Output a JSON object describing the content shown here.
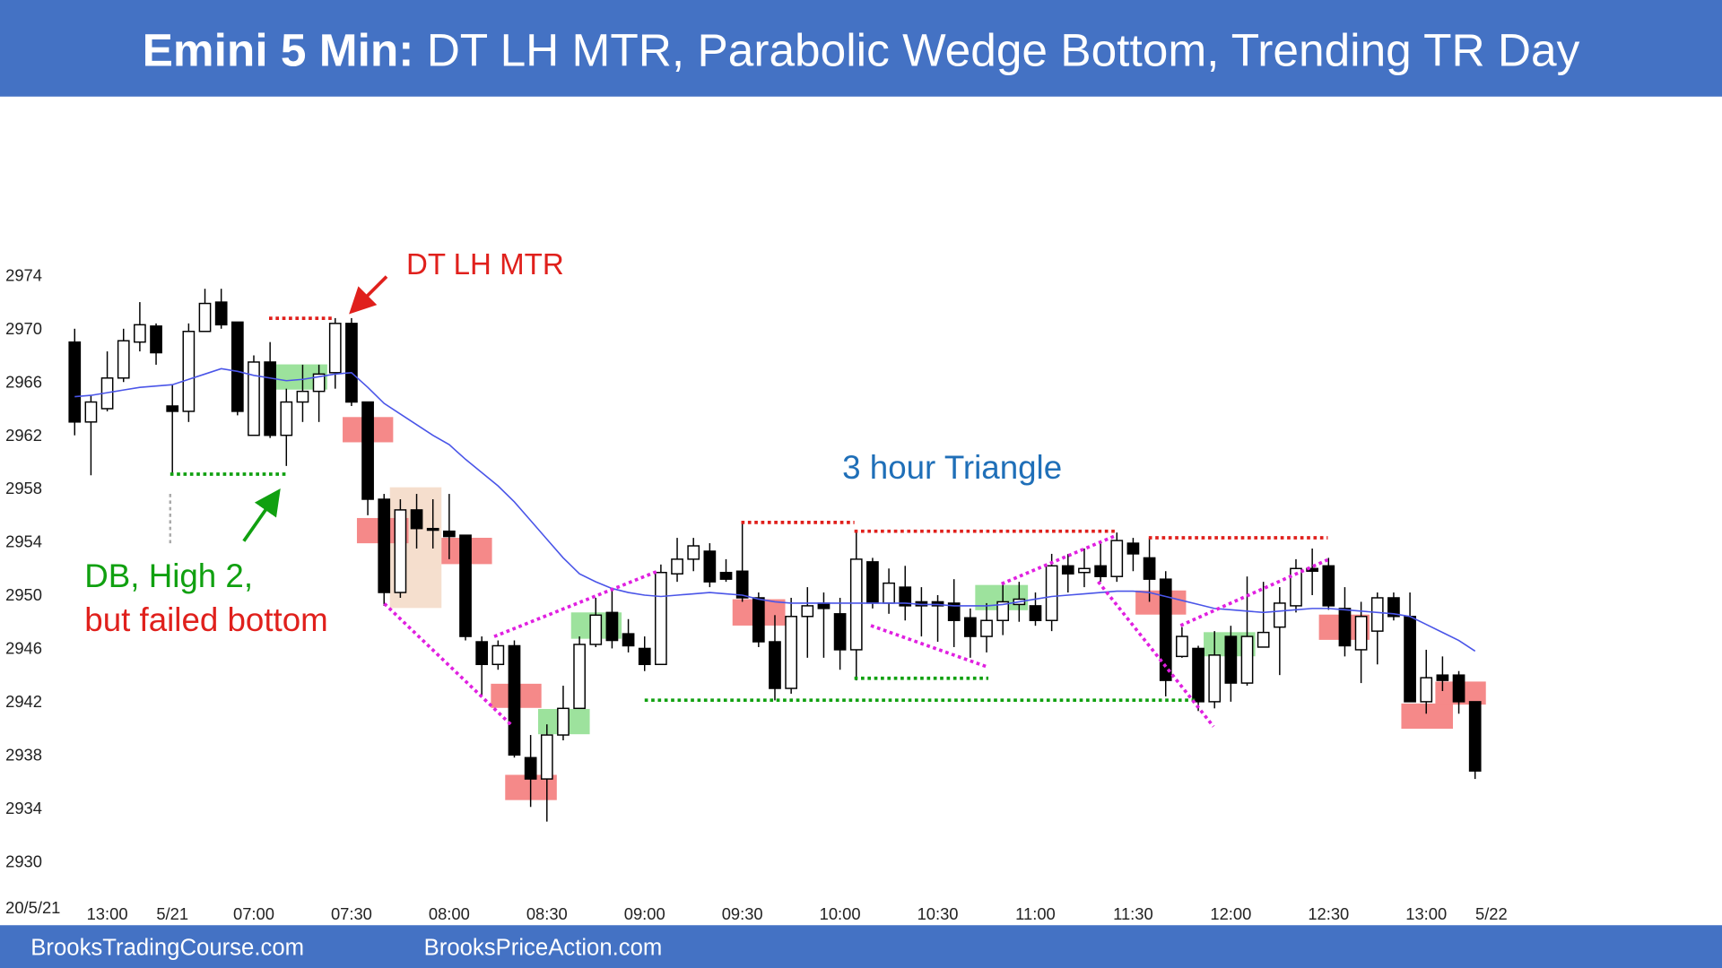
{
  "chart_data": {
    "type": "candlestick",
    "title_lead": "Emini 5 Min:",
    "title": "DT LH MTR, Parabolic Wedge Bottom, Trending TR Day",
    "date_label": "20/5/21",
    "annotations": [
      "DT LH MTR",
      "3 hour Triangle",
      "DB, High 2,",
      "but failed bottom"
    ],
    "footer": [
      "BrooksTradingCourse.com",
      "BrooksPriceAction.com"
    ],
    "categories": [
      null,
      null,
      "13:00",
      null,
      null,
      null,
      "5/21",
      null,
      null,
      null,
      null,
      "07:00",
      null,
      null,
      null,
      null,
      null,
      "07:30",
      null,
      null,
      null,
      null,
      null,
      "08:00",
      null,
      null,
      null,
      null,
      null,
      "08:30",
      null,
      null,
      null,
      null,
      null,
      "09:00",
      null,
      null,
      null,
      null,
      null,
      "09:30",
      null,
      null,
      null,
      null,
      null,
      "10:00",
      null,
      null,
      null,
      null,
      null,
      "10:30",
      null,
      null,
      null,
      null,
      null,
      "11:00",
      null,
      null,
      null,
      null,
      null,
      "11:30",
      null,
      null,
      null,
      null,
      null,
      "12:00",
      null,
      null,
      null,
      null,
      null,
      "12:30",
      null,
      null,
      null,
      null,
      null,
      "13:00",
      null,
      null,
      null,
      "5/22"
    ],
    "open": [
      2969,
      2963,
      2964,
      2966.3,
      2969,
      2970.2,
      2964.2,
      2963.8,
      2969.8,
      2972,
      2970.5,
      2962,
      2967.5,
      2962,
      2964.5,
      2965.3,
      2966.7,
      2970.4,
      2964.5,
      2957.2,
      2950.2,
      2956.4,
      2955,
      2954.8,
      2954.5,
      2946.5,
      2944.8,
      2946.2,
      2937.8,
      2936.2,
      2939.5,
      2941.5,
      2946.3,
      2948.7,
      2947.1,
      2946,
      2944.8,
      2951.6,
      2952.7,
      2953.3,
      2951.7,
      2951.8,
      2949.8,
      2946.5,
      2943,
      2948.4,
      2949.4,
      2948.6,
      2945.9,
      2952.5,
      2949.4,
      2950.6,
      2949.5,
      2949.5,
      2949.4,
      2948.3,
      2946.9,
      2948.1,
      2949.3,
      2949.2,
      2948.1,
      2952.2,
      2951.7,
      2952.2,
      2951.4,
      2953.9,
      2952.8,
      2951.2,
      2945.4,
      2946,
      2942,
      2946.9,
      2943.4,
      2946.1,
      2947.6,
      2949.2,
      2952,
      2952.2,
      2949,
      2945.9,
      2947.3,
      2949.8,
      2948.4,
      2942,
      2944,
      2944,
      2942,
      null
    ],
    "high": [
      2970,
      2965,
      2968.3,
      2970,
      2972,
      2970.4,
      2965.8,
      2970.4,
      2973,
      2973,
      2970.5,
      2968,
      2969,
      2965.5,
      2967.3,
      2967.3,
      2970.8,
      2970.8,
      2964.5,
      2957.6,
      2957.2,
      2957.6,
      2957.2,
      2957.6,
      2954.5,
      2946.9,
      2946.6,
      2946.6,
      2939.5,
      2940.3,
      2943.2,
      2946.9,
      2949.8,
      2950.5,
      2948.2,
      2946.9,
      2952.3,
      2954.3,
      2954.3,
      2953.9,
      2952.7,
      2955.5,
      2950.2,
      2948.5,
      2949.8,
      2950.6,
      2950.2,
      2949.8,
      2954.7,
      2952.8,
      2952,
      2952.2,
      2950.6,
      2950,
      2951.2,
      2949,
      2949.4,
      2951,
      2951,
      2950.2,
      2953.1,
      2953.1,
      2953.5,
      2953.9,
      2954.7,
      2954.3,
      2954.3,
      2951.8,
      2947.6,
      2946.2,
      2947.3,
      2947.7,
      2951.4,
      2951,
      2950.6,
      2952.7,
      2953.5,
      2952.8,
      2950.6,
      2949.5,
      2950.2,
      2950.2,
      2950.2,
      2945.9,
      2945.4,
      2944.3,
      2942,
      null
    ],
    "low": [
      2962,
      2959,
      2963.8,
      2966,
      2968.3,
      2967.3,
      2959,
      2963,
      2969.8,
      2970,
      2963.5,
      2962,
      2961.8,
      2959.7,
      2963,
      2963,
      2965.5,
      2964.2,
      2956,
      2949.2,
      2949.8,
      2953.5,
      2953.5,
      2952.7,
      2946.6,
      2942.4,
      2944.4,
      2937.8,
      2934.1,
      2933,
      2939.1,
      2941.5,
      2946.1,
      2946,
      2945.7,
      2944.3,
      2944.8,
      2951,
      2951.8,
      2950.6,
      2951,
      2949.5,
      2946.1,
      2942.1,
      2942.6,
      2945.3,
      2945.3,
      2944.4,
      2943.6,
      2949,
      2948.6,
      2948.1,
      2946.9,
      2946.5,
      2946.1,
      2945.3,
      2945.7,
      2947,
      2948,
      2947.7,
      2947.3,
      2950.2,
      2950.6,
      2951,
      2951,
      2951.8,
      2949.5,
      2942.4,
      2945.3,
      2941.3,
      2941.5,
      2942,
      2943.2,
      2946.1,
      2944,
      2948.7,
      2950,
      2948.9,
      2945.4,
      2943.4,
      2944.8,
      2948.1,
      2942,
      2941.1,
      2942.8,
      2941.1,
      2936.2,
      null
    ],
    "close": [
      2963,
      2964.5,
      2966.3,
      2969.1,
      2970.3,
      2968.2,
      2963.8,
      2969.8,
      2971.9,
      2970.3,
      2963.8,
      2967.5,
      2962,
      2964.5,
      2965.3,
      2966.6,
      2970.4,
      2964.5,
      2957.2,
      2950.2,
      2956.4,
      2955,
      2954.9,
      2954.4,
      2946.9,
      2944.8,
      2946.2,
      2938,
      2936.2,
      2939.5,
      2941.5,
      2946.3,
      2948.5,
      2946.6,
      2946.2,
      2944.8,
      2951.7,
      2952.7,
      2953.7,
      2951,
      2951.2,
      2949.8,
      2946.5,
      2943,
      2948.4,
      2949.2,
      2949,
      2945.9,
      2952.7,
      2949.4,
      2950.9,
      2949.2,
      2949.2,
      2949.2,
      2948.1,
      2946.9,
      2948.1,
      2949.5,
      2949.7,
      2948.1,
      2952.2,
      2951.6,
      2952,
      2951.4,
      2954.1,
      2953.1,
      2951.2,
      2943.6,
      2946.9,
      2942,
      2945.5,
      2943.4,
      2946.9,
      2947.2,
      2949.4,
      2952,
      2951.8,
      2949.2,
      2946.2,
      2948.4,
      2949.8,
      2948.4,
      2942,
      2943.8,
      2943.6,
      2942,
      2936.8,
      null
    ],
    "ema": [
      2964.9,
      2965,
      2965.2,
      2965.4,
      2965.6,
      2965.7,
      2965.8,
      2966.2,
      2966.6,
      2967,
      2966.8,
      2966.5,
      2966.3,
      2966.1,
      2966.2,
      2966.4,
      2966.6,
      2966.7,
      2965.6,
      2964.4,
      2963.6,
      2962.8,
      2962,
      2961.3,
      2960.2,
      2959.2,
      2958.2,
      2957,
      2955.6,
      2954.2,
      2952.8,
      2951.6,
      2951,
      2950.5,
      2950.2,
      2950,
      2949.9,
      2950,
      2950.1,
      2950.2,
      2950.1,
      2950,
      2949.7,
      2949.5,
      2949.4,
      2949.4,
      2949.4,
      2949.4,
      2949.4,
      2949.4,
      2949.4,
      2949.4,
      2949.3,
      2949.3,
      2949.2,
      2949.2,
      2949.2,
      2949.3,
      2949.5,
      2949.7,
      2949.9,
      2950,
      2950.1,
      2950.2,
      2950.3,
      2950.3,
      2950.2,
      2949.9,
      2949.6,
      2949.3,
      2949,
      2948.9,
      2948.8,
      2948.7,
      2948.8,
      2948.9,
      2949,
      2949,
      2948.9,
      2948.8,
      2948.7,
      2948.6,
      2948.4,
      2947.8,
      2947.2,
      2946.6,
      2945.8,
      null
    ],
    "up_color": "#ffffff",
    "down_color": "#000000",
    "ema_color": "#4a55e8",
    "ylim": [
      2930,
      2974
    ],
    "yticks": [
      2930,
      2934,
      2938,
      2942,
      2946,
      2950,
      2954,
      2958,
      2962,
      2966,
      2970,
      2974
    ],
    "grid": false
  }
}
